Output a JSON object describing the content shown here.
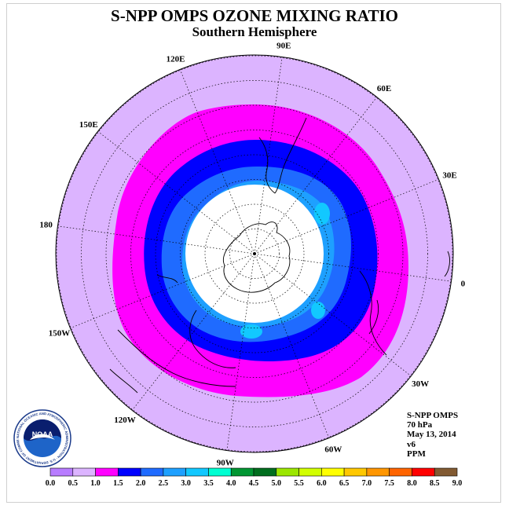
{
  "title": "S-NPP OMPS OZONE MIXING RATIO",
  "subtitle": "Southern Hemisphere",
  "longitude_labels": [
    {
      "text": "90W",
      "lon": -90
    },
    {
      "text": "60W",
      "lon": -60
    },
    {
      "text": "30W",
      "lon": -30
    },
    {
      "text": "0",
      "lon": 0
    },
    {
      "text": "30E",
      "lon": 30
    },
    {
      "text": "60E",
      "lon": 60
    },
    {
      "text": "90E",
      "lon": 90
    },
    {
      "text": "120E",
      "lon": 120
    },
    {
      "text": "150E",
      "lon": 150
    },
    {
      "text": "180",
      "lon": 180
    },
    {
      "text": "150W",
      "lon": -150
    },
    {
      "text": "120W",
      "lon": -120
    }
  ],
  "info": {
    "instrument": "S-NPP OMPS",
    "level": "70 hPa",
    "date": "May 13, 2014",
    "version": "v6",
    "units": "PPM"
  },
  "logo": {
    "text": "NOAA",
    "ring_text": "NATIONAL OCEANIC AND ATMOSPHERIC ADMINISTRATION · U.S. DEPARTMENT OF COMMERCE"
  },
  "colorbar": {
    "ticks": [
      "0.0",
      "0.5",
      "1.0",
      "1.5",
      "2.0",
      "2.5",
      "3.0",
      "3.5",
      "4.0",
      "4.5",
      "5.0",
      "5.5",
      "6.0",
      "6.5",
      "7.0",
      "7.5",
      "8.0",
      "8.5",
      "9.0"
    ],
    "colors": [
      "#b87cff",
      "#dcb4ff",
      "#ff00ff",
      "#0000ff",
      "#1f6bff",
      "#1ea0ff",
      "#12c8ff",
      "#00ffd2",
      "#009632",
      "#006e1e",
      "#9be600",
      "#d2ff00",
      "#ffff00",
      "#ffc800",
      "#ff9600",
      "#ff6400",
      "#ff0000",
      "#825a32"
    ]
  },
  "map_colors": {
    "ocean_low": "#dcb4ff",
    "band_magenta": "#ff00ff",
    "band_blue": "#0000ff",
    "band_mid_blue": "#1f6bff",
    "band_light_blue": "#1ea0ff",
    "pole_missing": "#ffffff"
  }
}
